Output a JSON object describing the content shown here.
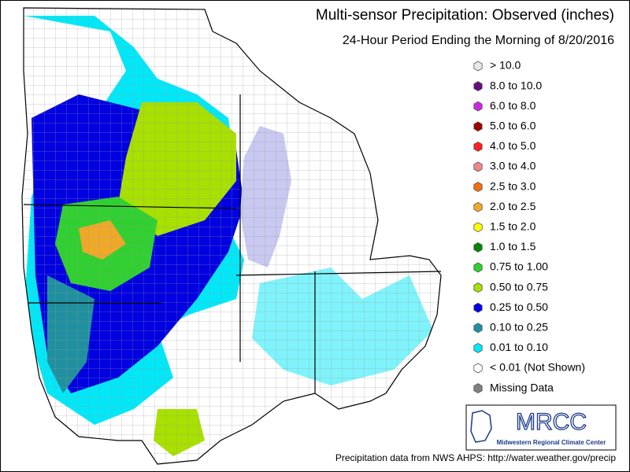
{
  "header": {
    "title": "Multi-sensor Precipitation:  Observed (inches)",
    "subtitle": "24-Hour Period Ending the Morning of 8/20/2016"
  },
  "legend": [
    {
      "label": "> 10.0",
      "color": "#e8e8e8"
    },
    {
      "label": "8.0 to 10.0",
      "color": "#6a0a80"
    },
    {
      "label": "6.0 to 8.0",
      "color": "#c828e0"
    },
    {
      "label": "5.0 to 6.0",
      "color": "#a00000"
    },
    {
      "label": "4.0 to 5.0",
      "color": "#ff2020"
    },
    {
      "label": "3.0 to 4.0",
      "color": "#f08888"
    },
    {
      "label": "2.5 to 3.0",
      "color": "#f07010"
    },
    {
      "label": "2.0 to 2.5",
      "color": "#f0a828"
    },
    {
      "label": "1.5 to 2.0",
      "color": "#ffff00"
    },
    {
      "label": "1.0 to 1.5",
      "color": "#008800"
    },
    {
      "label": "0.75 to 1.00",
      "color": "#30d030"
    },
    {
      "label": "0.50 to 0.75",
      "color": "#a8e000"
    },
    {
      "label": "0.25 to 0.50",
      "color": "#0000e0"
    },
    {
      "label": "0.10 to 0.25",
      "color": "#2090a0"
    },
    {
      "label": "0.01 to 0.10",
      "color": "#00e8f8"
    },
    {
      "label": "< 0.01 (Not Shown)",
      "color": "#ffffff"
    },
    {
      "label": "Missing Data",
      "color": "#808080"
    }
  ],
  "logo": {
    "name": "MRCC",
    "subtitle": "Midwestern Regional Climate Center"
  },
  "footer": "Precipitation data from NWS AHPS: http://water.weather.gov/precip"
}
